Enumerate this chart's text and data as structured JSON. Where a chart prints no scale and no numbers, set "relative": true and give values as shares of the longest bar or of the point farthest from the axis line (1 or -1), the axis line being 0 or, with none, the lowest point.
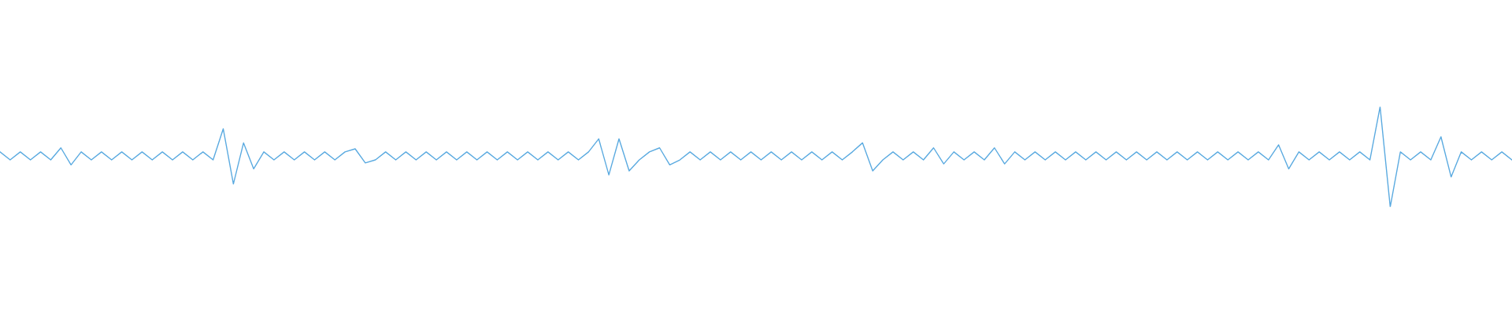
{
  "chart_data": {
    "type": "line",
    "relative": true,
    "color": "#5aaae0",
    "categories": [
      null,
      null,
      null,
      null,
      null,
      null,
      null,
      null,
      null,
      null,
      null,
      null,
      null,
      null,
      null,
      null,
      null,
      null,
      null,
      null,
      null,
      null,
      null,
      null,
      null,
      null,
      null,
      null,
      null,
      null,
      null,
      null,
      null,
      null,
      null,
      null,
      null,
      null,
      null,
      null,
      null,
      null,
      null,
      null,
      null,
      null,
      null,
      null,
      null,
      null,
      null,
      null,
      null,
      null,
      null,
      null,
      null,
      null,
      null,
      null,
      null,
      null,
      null,
      null,
      null,
      null,
      null,
      null,
      null,
      null,
      null,
      null,
      null,
      null,
      null,
      null,
      null,
      null,
      null,
      null,
      null,
      null,
      null,
      null,
      null,
      null,
      null,
      null,
      null,
      null,
      null,
      null,
      null,
      null,
      null,
      null,
      null,
      null,
      null,
      null,
      null,
      null,
      null,
      null,
      null,
      null,
      null,
      null,
      null,
      null,
      null,
      null,
      null,
      null,
      null,
      null,
      null,
      null,
      null,
      null,
      null,
      null,
      null,
      null,
      null,
      null,
      null,
      null,
      null,
      null,
      null,
      null,
      null,
      null,
      null,
      null,
      null,
      null,
      null,
      null,
      null,
      null,
      null,
      null,
      null,
      null,
      null,
      null,
      null,
      null
    ],
    "values": [
      0.55,
      0.47,
      0.55,
      0.47,
      0.55,
      0.47,
      0.59,
      0.42,
      0.55,
      0.47,
      0.55,
      0.47,
      0.55,
      0.47,
      0.55,
      0.47,
      0.55,
      0.47,
      0.55,
      0.47,
      0.55,
      0.47,
      0.78,
      0.23,
      0.64,
      0.38,
      0.55,
      0.47,
      0.55,
      0.47,
      0.55,
      0.47,
      0.55,
      0.47,
      0.55,
      0.58,
      0.44,
      0.47,
      0.55,
      0.47,
      0.55,
      0.47,
      0.55,
      0.47,
      0.55,
      0.47,
      0.55,
      0.47,
      0.55,
      0.47,
      0.55,
      0.47,
      0.55,
      0.47,
      0.55,
      0.47,
      0.55,
      0.47,
      0.55,
      0.68,
      0.32,
      0.68,
      0.36,
      0.47,
      0.55,
      0.59,
      0.42,
      0.47,
      0.55,
      0.47,
      0.55,
      0.47,
      0.55,
      0.47,
      0.55,
      0.47,
      0.55,
      0.47,
      0.55,
      0.47,
      0.55,
      0.47,
      0.55,
      0.47,
      0.55,
      0.64,
      0.36,
      0.47,
      0.55,
      0.47,
      0.55,
      0.47,
      0.59,
      0.43,
      0.55,
      0.47,
      0.55,
      0.47,
      0.59,
      0.43,
      0.55,
      0.47,
      0.55,
      0.47,
      0.55,
      0.47,
      0.55,
      0.47,
      0.55,
      0.47,
      0.55,
      0.47,
      0.55,
      0.47,
      0.55,
      0.47,
      0.55,
      0.47,
      0.55,
      0.47,
      0.55,
      0.47,
      0.55,
      0.47,
      0.55,
      0.47,
      0.62,
      0.38,
      0.55,
      0.47,
      0.55,
      0.47,
      0.55,
      0.47,
      0.55,
      0.47,
      1,
      0,
      0.55,
      0.47,
      0.55,
      0.47,
      0.7,
      0.3,
      0.55,
      0.47,
      0.55,
      0.47,
      0.55,
      0.47
    ]
  }
}
